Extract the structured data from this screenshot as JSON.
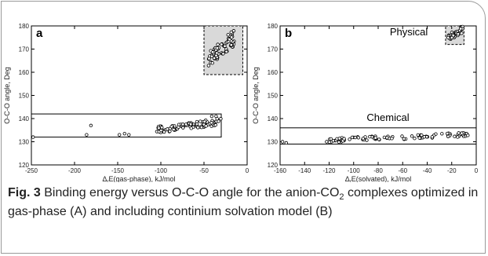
{
  "chart_data": [
    {
      "type": "scatter",
      "panel_label": "a",
      "xlabel_prefix": "Δ",
      "xlabel_sub": "r",
      "xlabel_rest": "E(gas-phase), kJ/mol",
      "ylabel": "O-C-O angle, Deg",
      "xlim": [
        -250,
        0
      ],
      "ylim": [
        120,
        180
      ],
      "xticks": [
        -250,
        -200,
        -150,
        -100,
        -50,
        0
      ],
      "yticks": [
        120,
        130,
        140,
        150,
        160,
        170,
        180
      ],
      "boxes": [
        {
          "kind": "shaded",
          "x": [
            -50,
            -5
          ],
          "y": [
            159,
            180
          ]
        },
        {
          "kind": "outline",
          "x": [
            -250,
            -30
          ],
          "y": [
            132,
            142
          ]
        }
      ],
      "annotations": [],
      "clusters": [
        {
          "x_range": [
            -45,
            -15
          ],
          "y_range": [
            162,
            178
          ],
          "count": 70
        },
        {
          "x_range": [
            -105,
            -30
          ],
          "y_range": [
            133.5,
            140
          ],
          "count": 95
        }
      ],
      "points": [
        [
          -248,
          132
        ],
        [
          -186,
          133
        ],
        [
          -181,
          137
        ],
        [
          -148,
          133
        ],
        [
          -142,
          133.5
        ],
        [
          -137,
          133
        ],
        [
          -41,
          141
        ],
        [
          -36,
          141
        ],
        [
          -38,
          170
        ],
        [
          -34,
          172
        ]
      ]
    },
    {
      "type": "scatter",
      "panel_label": "b",
      "xlabel_prefix": "Δ",
      "xlabel_sub": "r",
      "xlabel_rest": "E(solvated), kJ/mol",
      "ylabel": "O-C-O angle, Deg",
      "xlim": [
        -160,
        0
      ],
      "ylim": [
        120,
        180
      ],
      "xticks": [
        -160,
        -140,
        -120,
        -100,
        -80,
        -60,
        -40,
        -20,
        0
      ],
      "yticks": [
        120,
        130,
        140,
        150,
        160,
        170,
        180
      ],
      "boxes": [
        {
          "kind": "shaded-dashed",
          "x": [
            -25,
            -10
          ],
          "y": [
            172,
            180
          ]
        },
        {
          "kind": "outline",
          "x": [
            -160,
            0
          ],
          "y": [
            129,
            136
          ]
        }
      ],
      "annotations": [
        {
          "text": "Physical",
          "x": -55,
          "y": 176
        },
        {
          "text": "Chemical",
          "x": -72,
          "y": 139
        }
      ],
      "clusters": [
        {
          "x_range": [
            -23,
            -11
          ],
          "y_range": [
            173,
            180
          ],
          "count": 45
        },
        {
          "x_range": [
            -120,
            -5
          ],
          "y_range": [
            129.5,
            134
          ],
          "count": 95
        }
      ],
      "points": [
        [
          -158,
          130
        ],
        [
          -155,
          129.5
        ],
        [
          -122,
          130
        ],
        [
          -118,
          130
        ],
        [
          -115,
          130.5
        ],
        [
          -108,
          130.5
        ],
        [
          -110,
          130
        ],
        [
          -112,
          130.5
        ]
      ]
    }
  ],
  "caption": {
    "label": "Fig. 3",
    "text_before_sub": "Binding energy versus O-C-O angle for the anion-CO",
    "sub": "2",
    "text_after_sub": " complexes optimized in gas-phase (A) and including continium solvation model (B)"
  }
}
